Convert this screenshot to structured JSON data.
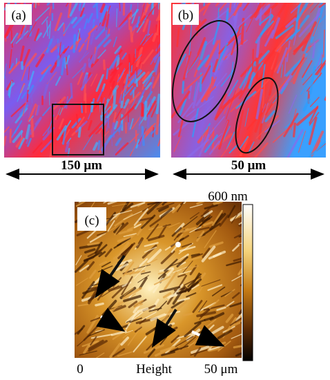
{
  "panels": [
    {
      "label": "(a)",
      "scale": "150 μm"
    },
    {
      "label": "(b)",
      "scale": "50 μm"
    },
    {
      "label": "(c)",
      "colorbar_max": "600 nm",
      "colorbar_min": "0",
      "axis_label": "Height",
      "scale": "50 μm"
    }
  ]
}
